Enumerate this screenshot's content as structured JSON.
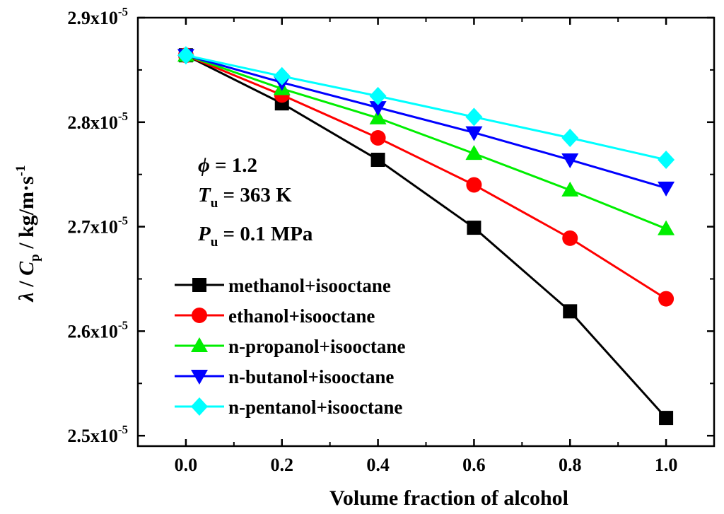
{
  "chart_data": {
    "type": "line",
    "x": [
      0.0,
      0.2,
      0.4,
      0.6,
      0.8,
      1.0
    ],
    "xlim": [
      -0.1,
      1.1
    ],
    "ylim": [
      2.49e-05,
      2.9e-05
    ],
    "x_ticks": [
      "0.0",
      "0.2",
      "0.4",
      "0.6",
      "0.8",
      "1.0"
    ],
    "y_ticks": [
      {
        "value": 2.5e-05,
        "mantissa": "2.5x10",
        "exp": "-5"
      },
      {
        "value": 2.6e-05,
        "mantissa": "2.6x10",
        "exp": "-5"
      },
      {
        "value": 2.7e-05,
        "mantissa": "2.7x10",
        "exp": "-5"
      },
      {
        "value": 2.8e-05,
        "mantissa": "2.8x10",
        "exp": "-5"
      },
      {
        "value": 2.9e-05,
        "mantissa": "2.9x10",
        "exp": "-5"
      }
    ],
    "xlabel": "Volume fraction of alcohol",
    "ylabel": {
      "lambda": "λ",
      "slash1": " / ",
      "cp": "C",
      "cp_sub": "p",
      "unit": " / kg/m·s",
      "unit_sup": "-1"
    },
    "annotations": [
      {
        "symbol": "ϕ",
        "sub": "",
        "text": " = 1.2"
      },
      {
        "symbol": "T",
        "sub": "u",
        "text": " = 363 K"
      },
      {
        "symbol": "P",
        "sub": "u",
        "text": " = 0.1 MPa"
      }
    ],
    "legend_position": "bottom-left",
    "series": [
      {
        "name": "methanol+isooctane",
        "color": "#000000",
        "marker": "square",
        "values": [
          2.864e-05,
          2.818e-05,
          2.764e-05,
          2.699e-05,
          2.619e-05,
          2.517e-05
        ]
      },
      {
        "name": "ethanol+isooctane",
        "color": "#ff0000",
        "marker": "circle",
        "values": [
          2.864e-05,
          2.826e-05,
          2.785e-05,
          2.74e-05,
          2.689e-05,
          2.631e-05
        ]
      },
      {
        "name": "n-propanol+isooctane",
        "color": "#00ee00",
        "marker": "triangle-up",
        "values": [
          2.864e-05,
          2.832e-05,
          2.804e-05,
          2.77e-05,
          2.735e-05,
          2.698e-05
        ]
      },
      {
        "name": "n-butanol+isooctane",
        "color": "#0000ff",
        "marker": "triangle-down",
        "values": [
          2.864e-05,
          2.838e-05,
          2.814e-05,
          2.79e-05,
          2.764e-05,
          2.737e-05
        ]
      },
      {
        "name": "n-pentanol+isooctane",
        "color": "#00ffff",
        "marker": "diamond",
        "values": [
          2.864e-05,
          2.844e-05,
          2.825e-05,
          2.805e-05,
          2.785e-05,
          2.764e-05
        ]
      }
    ]
  }
}
